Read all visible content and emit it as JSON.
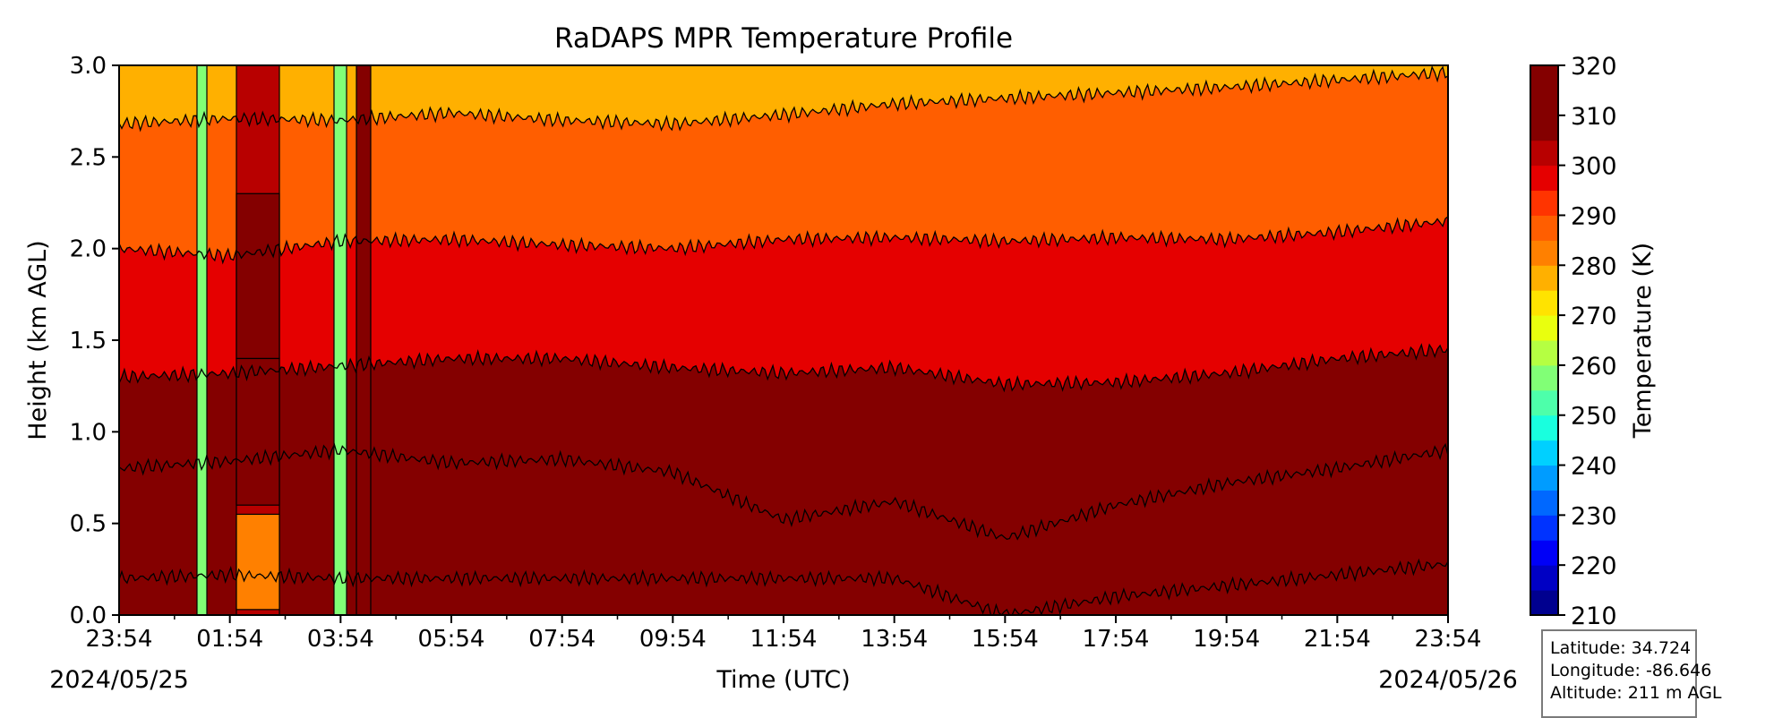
{
  "chart_data": {
    "type": "heatmap",
    "title": "RaDAPS MPR Temperature Profile",
    "xlabel": "Time (UTC)",
    "ylabel": "Height (km AGL)",
    "ylim": [
      0.0,
      3.0
    ],
    "yticks": [
      "0.0",
      "0.5",
      "1.0",
      "1.5",
      "2.0",
      "2.5",
      "3.0"
    ],
    "xticks": [
      "23:54",
      "01:54",
      "03:54",
      "05:54",
      "07:54",
      "09:54",
      "11:54",
      "13:54",
      "15:54",
      "17:54",
      "19:54",
      "21:54",
      "23:54"
    ],
    "date_start": "2024/05/25",
    "date_end": "2024/05/26",
    "colorbar": {
      "label": "Temperature (K)",
      "range": [
        210,
        320
      ],
      "step": 5,
      "ticks": [
        "210",
        "220",
        "230",
        "240",
        "250",
        "260",
        "270",
        "280",
        "290",
        "300",
        "310",
        "320"
      ],
      "colors": [
        "#00008f",
        "#0000c4",
        "#0000f7",
        "#0033ff",
        "#0068ff",
        "#009cff",
        "#00d0ff",
        "#19ffde",
        "#4dffaa",
        "#81ff76",
        "#b5ff42",
        "#e9ff0e",
        "#ffe300",
        "#ffb000",
        "#ff8000",
        "#ff5e00",
        "#ff3400",
        "#e50000",
        "#b80000",
        "#840000",
        "#840000",
        "#840000"
      ],
      "extend": "neither"
    },
    "contour_interval_k": 10,
    "contour_levels": [
      {
        "level": 280,
        "height_km": [
          2.68,
          2.71,
          2.7,
          2.74,
          2.7,
          2.68,
          2.73,
          2.79,
          2.82,
          2.85,
          2.88,
          2.92,
          2.96
        ]
      },
      {
        "level": 290,
        "height_km": [
          2.0,
          1.96,
          2.04,
          2.05,
          2.02,
          2.0,
          2.05,
          2.06,
          2.04,
          2.06,
          2.05,
          2.09,
          2.15
        ]
      },
      {
        "level": 300,
        "height_km": [
          1.3,
          1.32,
          1.36,
          1.4,
          1.4,
          1.35,
          1.32,
          1.35,
          1.26,
          1.27,
          1.32,
          1.4,
          1.45
        ]
      },
      {
        "level": 310,
        "height_km": [
          0.8,
          0.84,
          0.9,
          0.83,
          0.85,
          0.78,
          0.52,
          0.62,
          0.42,
          0.6,
          0.72,
          0.8,
          0.9
        ]
      },
      {
        "level": 320,
        "height_km": [
          0.2,
          0.22,
          0.2,
          0.2,
          0.2,
          0.2,
          0.2,
          0.2,
          0.0,
          0.1,
          0.16,
          0.22,
          0.28
        ]
      }
    ],
    "grid": false,
    "legend": "none"
  },
  "station_info": {
    "latitude": "Latitude: 34.724",
    "longitude": "Longitude: -86.646",
    "altitude": "Altitude: 211 m AGL"
  }
}
